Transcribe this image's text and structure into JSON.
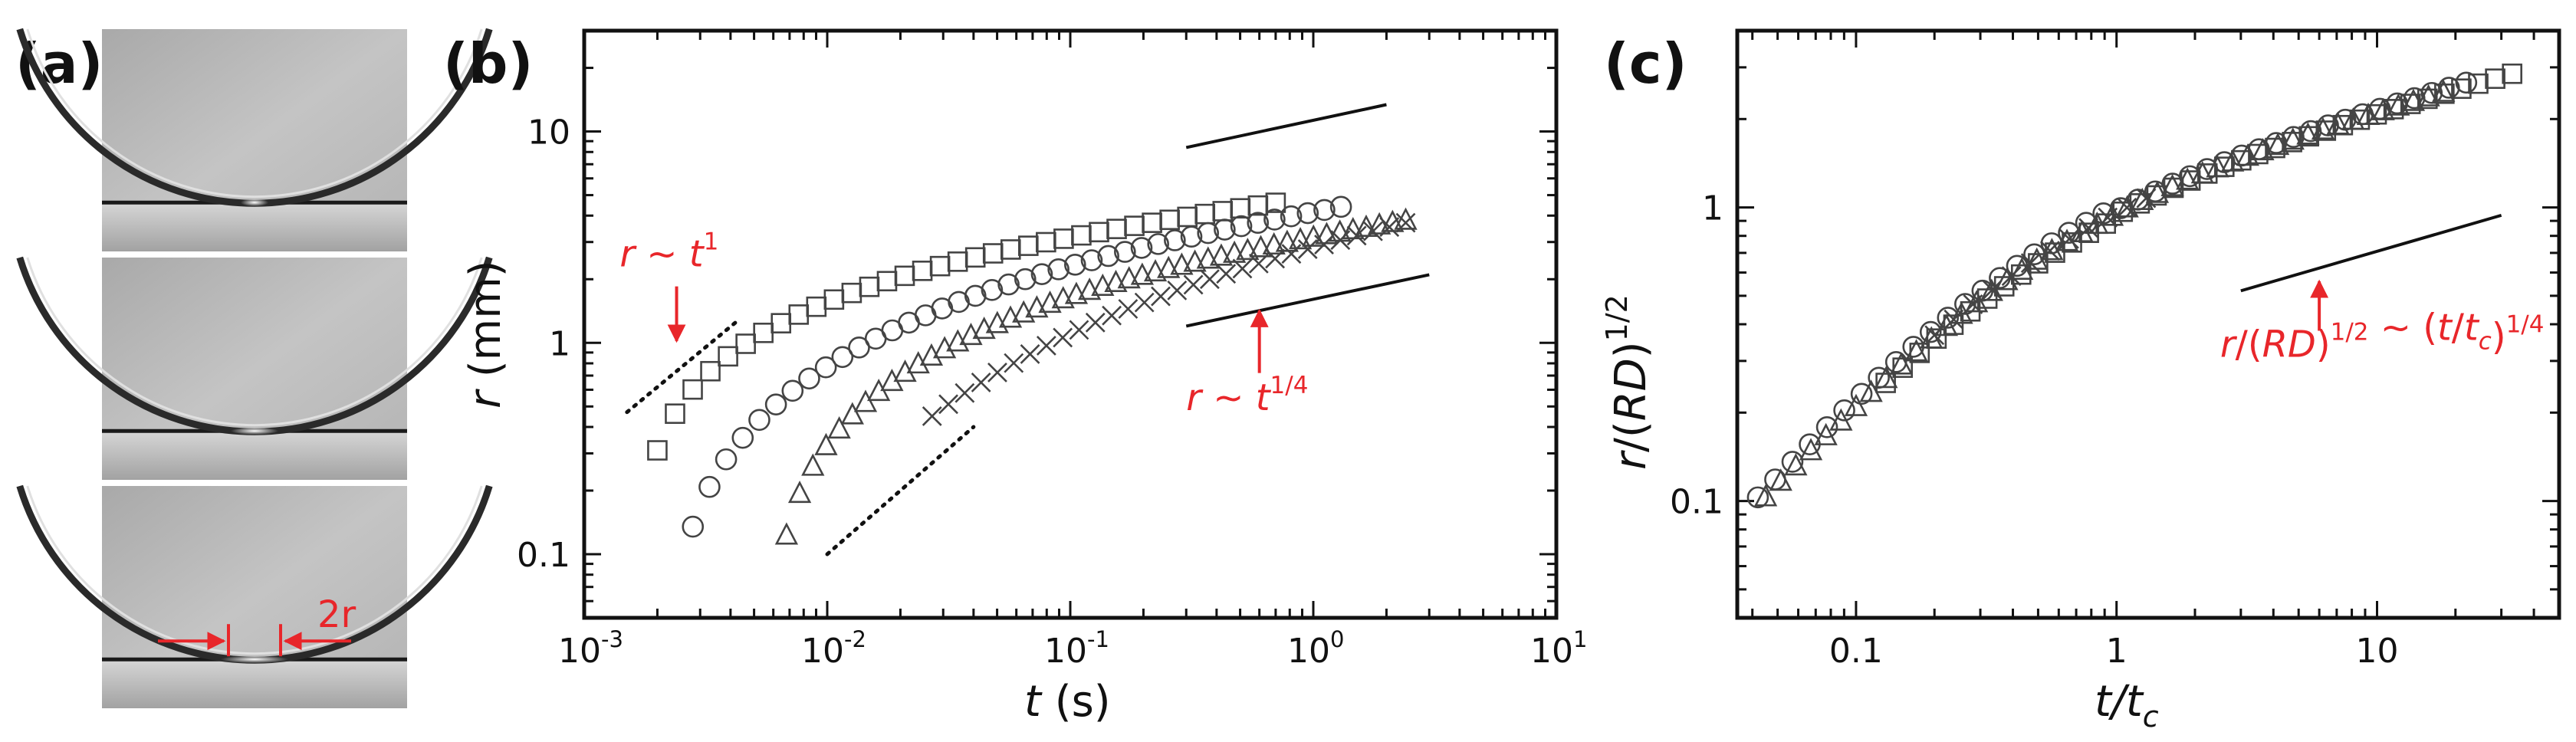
{
  "panels": {
    "a": {
      "label": "(a)",
      "annotation": "2r",
      "frames": [
        "drop-frame-1",
        "drop-frame-2",
        "drop-frame-3"
      ]
    },
    "b": {
      "label": "(b)"
    },
    "c": {
      "label": "(c)"
    }
  },
  "colors": {
    "annotation": "#e8262a",
    "marker": "#444444",
    "axis": "#111111"
  },
  "chart_data": [
    {
      "id": "b",
      "type": "scatter",
      "xscale": "log",
      "yscale": "log",
      "xlim": [
        0.001,
        10
      ],
      "ylim": [
        0.05,
        30
      ],
      "xlabel": {
        "var": "t",
        "unit": " (s)"
      },
      "ylabel": {
        "var": "r",
        "unit": " (mm)"
      },
      "x_ticks": [
        {
          "value": 0.001,
          "base": "10",
          "exp": "-3"
        },
        {
          "value": 0.01,
          "base": "10",
          "exp": "-2"
        },
        {
          "value": 0.1,
          "base": "10",
          "exp": "-1"
        },
        {
          "value": 1,
          "base": "10",
          "exp": "0"
        },
        {
          "value": 10,
          "base": "10",
          "exp": "1"
        }
      ],
      "y_ticks": [
        {
          "value": 0.1,
          "label": "0.1"
        },
        {
          "value": 1,
          "label": "1"
        },
        {
          "value": 10,
          "label": "10"
        }
      ],
      "series": [
        {
          "name": "squares",
          "marker": "square",
          "x_start": 0.002,
          "x_end": 0.7,
          "y_start": 0.31,
          "y_end": 4.6,
          "n": 36,
          "t0": 0.0016,
          "tau": 0.004,
          "p": 0.33
        },
        {
          "name": "circles",
          "marker": "circle",
          "x_start": 0.0028,
          "x_end": 1.3,
          "y_start": 0.135,
          "y_end": 4.4,
          "n": 40,
          "t0": 0.0022,
          "tau": 0.013,
          "p": 0.33
        },
        {
          "name": "triangles",
          "marker": "triangle",
          "x_start": 0.0068,
          "x_end": 2.4,
          "y_start": 0.123,
          "y_end": 3.8,
          "n": 48,
          "t0": 0.0058,
          "tau": 0.026,
          "p": 0.35
        },
        {
          "name": "crosses",
          "marker": "cross",
          "x_start": 0.027,
          "x_end": 2.4,
          "y_start": 0.45,
          "y_end": 3.7,
          "n": 30,
          "t0": 0.004,
          "tau": 0.03,
          "p": 0.33
        }
      ],
      "guide_lines": [
        {
          "name": "slope-1-top",
          "style": "dotted",
          "x": [
            0.0015,
            0.0042
          ],
          "y": [
            0.47,
            1.25
          ]
        },
        {
          "name": "slope-1-bottom",
          "style": "dotted",
          "x": [
            0.01,
            0.04
          ],
          "y": [
            0.1,
            0.4
          ]
        },
        {
          "name": "slope-quarter-top",
          "style": "solid",
          "x": [
            0.3,
            2.0
          ],
          "y": [
            8.4,
            13.4
          ]
        },
        {
          "name": "slope-quarter-bottom",
          "style": "solid",
          "x": [
            0.3,
            3.0
          ],
          "y": [
            1.2,
            2.1
          ]
        }
      ],
      "annotations": [
        {
          "name": "r-t1",
          "parts": [
            [
              "r",
              "it"
            ],
            [
              " ~ ",
              ""
            ],
            [
              "t",
              "it"
            ],
            [
              "1",
              "sup"
            ]
          ],
          "x": 0.0014,
          "y": 2.3,
          "arrow_from": [
            0.0024,
            1.85
          ],
          "arrow_to": [
            0.0024,
            1.02
          ]
        },
        {
          "name": "r-t14",
          "parts": [
            [
              "r",
              "it"
            ],
            [
              " ~ ",
              ""
            ],
            [
              "t",
              "it"
            ],
            [
              "1/4",
              "sup"
            ]
          ],
          "x": 0.3,
          "y": 0.48,
          "arrow_from": [
            0.6,
            0.72
          ],
          "arrow_to": [
            0.6,
            1.42
          ]
        }
      ]
    },
    {
      "id": "c",
      "type": "scatter",
      "xscale": "log",
      "yscale": "log",
      "xlim": [
        0.035,
        50
      ],
      "ylim": [
        0.04,
        4
      ],
      "xlabel": {
        "var": "t/t",
        "sub": "c"
      },
      "ylabel": {
        "var": "r",
        "mid": "/(",
        "var2": "RD",
        "post": ")",
        "sup": "1/2"
      },
      "x_ticks": [
        {
          "value": 0.1,
          "label": "0.1"
        },
        {
          "value": 1,
          "label": "1"
        },
        {
          "value": 10,
          "label": "10"
        }
      ],
      "y_ticks": [
        {
          "value": 0.1,
          "label": "0.1"
        },
        {
          "value": 1,
          "label": "1"
        }
      ],
      "series": [
        {
          "name": "squares",
          "marker": "square",
          "x_start": 0.13,
          "x_end": 33,
          "n": 38
        },
        {
          "name": "circles",
          "marker": "circle",
          "x_start": 0.042,
          "x_end": 22,
          "n": 42
        },
        {
          "name": "triangles",
          "marker": "triangle",
          "x_start": 0.045,
          "x_end": 18,
          "n": 46
        },
        {
          "name": "crosses",
          "marker": "cross",
          "x_start": 0.2,
          "x_end": 1.3,
          "n": 12
        }
      ],
      "collapse_curve": {
        "k": 1.22,
        "b": 0.38
      },
      "guide_lines": [
        {
          "name": "slope-quarter",
          "style": "solid",
          "x": [
            3.0,
            30.0
          ],
          "y": [
            0.52,
            0.94
          ]
        }
      ],
      "annotations": [
        {
          "name": "collapse-law",
          "parts": [
            [
              "r",
              "it"
            ],
            [
              "/(",
              ""
            ],
            [
              "RD",
              "it"
            ],
            [
              ")",
              ""
            ],
            [
              "1/2",
              "sup"
            ],
            [
              " ~ (",
              ""
            ],
            [
              "t",
              "it"
            ],
            [
              "/",
              ""
            ],
            [
              "t",
              "it"
            ],
            [
              "c",
              "sub"
            ],
            [
              ")",
              ""
            ],
            [
              "1/4",
              "sup"
            ]
          ],
          "x": 2.5,
          "y": 0.31,
          "arrow_from": [
            6.0,
            0.38
          ],
          "arrow_to": [
            6.0,
            0.56
          ]
        }
      ]
    }
  ]
}
